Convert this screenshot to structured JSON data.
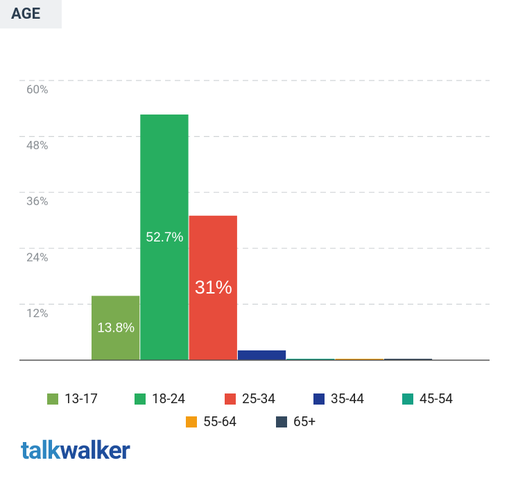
{
  "header": {
    "title": "AGE"
  },
  "chart_data": {
    "type": "bar",
    "categories": [
      "13-17",
      "18-24",
      "25-34",
      "35-44",
      "45-54",
      "55-64",
      "65+"
    ],
    "values": [
      13.8,
      52.7,
      31,
      2.1,
      0.3,
      0.3,
      0.3
    ],
    "value_labels": [
      "13.8%",
      "52.7%",
      "31%",
      null,
      null,
      null,
      null
    ],
    "colors": [
      "#7aab4f",
      "#27ae60",
      "#e74c3c",
      "#1f3a93",
      "#16a085",
      "#f39c12",
      "#34495e"
    ],
    "ylim": [
      0,
      60
    ],
    "yticks": [
      {
        "value": 12,
        "label": "12%"
      },
      {
        "value": 24,
        "label": "24%"
      },
      {
        "value": 36,
        "label": "36%"
      },
      {
        "value": 48,
        "label": "48%"
      },
      {
        "value": 60,
        "label": "60%"
      }
    ],
    "grid": true
  },
  "footer": {
    "logo_part1": "talk",
    "logo_part2": "walker"
  }
}
